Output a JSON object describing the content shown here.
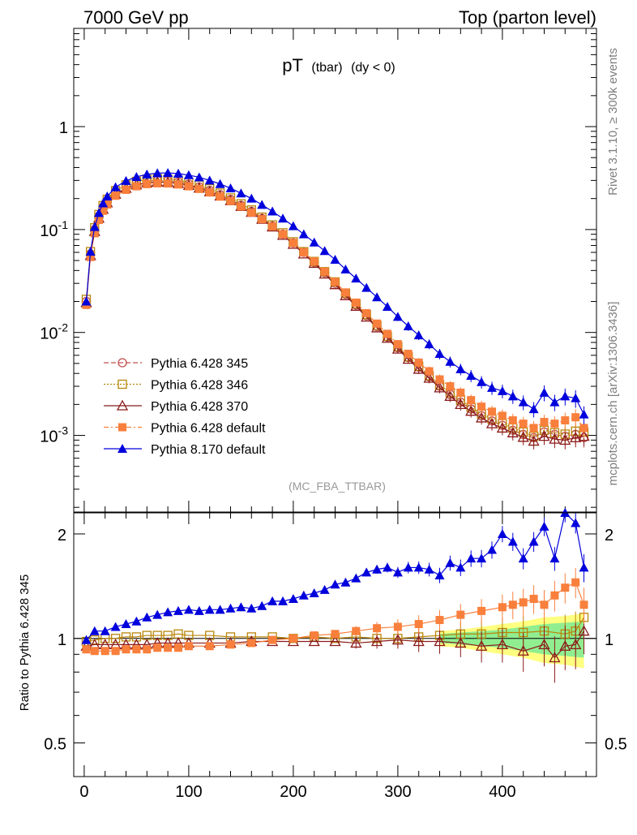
{
  "header": {
    "left": "7000 GeV pp",
    "right": "Top (parton level)"
  },
  "plot_title": {
    "main": "pT",
    "sub": "(tbar)",
    "cond": "(dy < 0)"
  },
  "watermark": "(MC_FBA_TTBAR)",
  "side_text": {
    "rivet": "Rivet 3.1.10, ≥ 300k events",
    "mcplots": "mcplots.cern.ch [arXiv:1306.3436]"
  },
  "colors": {
    "p345": "#c0504d",
    "p346": "#b8860b",
    "p370": "#8b1a1a",
    "p6def": "#f97f3c",
    "p8": "#0000dd",
    "band_outer": "#ffff80",
    "band_inner": "#90ee90"
  },
  "chart_data": [
    {
      "type": "line",
      "panel": "main",
      "yscale": "log",
      "xlim": [
        -10,
        490
      ],
      "ylim": [
        0.00018,
        9
      ],
      "y_tick_labels": [
        "1",
        "10^-1",
        "10^-2",
        "10^-3"
      ],
      "legend_placement": "bottom-left",
      "series": [
        {
          "name": "Pythia 6.428 345",
          "key": "p345",
          "marker": "open-circle",
          "dash": "dashed",
          "x": [
            2,
            6,
            10,
            14,
            18,
            22,
            30,
            40,
            50,
            60,
            70,
            80,
            90,
            100,
            110,
            120,
            130,
            140,
            150,
            160,
            170,
            180,
            190,
            200,
            210,
            220,
            230,
            240,
            250,
            260,
            270,
            280,
            290,
            300,
            310,
            320,
            330,
            340,
            350,
            360,
            370,
            380,
            390,
            400,
            410,
            420,
            430,
            440,
            450,
            460,
            470,
            478
          ],
          "y": [
            0.02,
            0.058,
            0.1,
            0.135,
            0.165,
            0.19,
            0.23,
            0.262,
            0.283,
            0.296,
            0.3,
            0.298,
            0.29,
            0.277,
            0.26,
            0.24,
            0.218,
            0.196,
            0.172,
            0.15,
            0.128,
            0.108,
            0.09,
            0.074,
            0.06,
            0.048,
            0.038,
            0.03,
            0.0235,
            0.0185,
            0.0145,
            0.0114,
            0.009,
            0.0071,
            0.0057,
            0.0046,
            0.0037,
            0.003,
            0.0025,
            0.0021,
            0.0018,
            0.00155,
            0.00138,
            0.00125,
            0.00112,
            0.00102,
            0.00095,
            0.00108,
            0.00102,
            0.00098,
            0.00102,
            0.00095
          ]
        },
        {
          "name": "Pythia 6.428 346",
          "key": "p346",
          "marker": "open-square",
          "dash": "dotted",
          "x": [
            2,
            6,
            10,
            14,
            18,
            22,
            30,
            40,
            50,
            60,
            70,
            80,
            90,
            100,
            110,
            120,
            130,
            140,
            150,
            160,
            170,
            180,
            190,
            200,
            210,
            220,
            230,
            240,
            250,
            260,
            270,
            280,
            290,
            300,
            310,
            320,
            330,
            340,
            350,
            360,
            370,
            380,
            390,
            400,
            410,
            420,
            430,
            440,
            450,
            460,
            470,
            478
          ],
          "y": [
            0.021,
            0.061,
            0.104,
            0.14,
            0.171,
            0.197,
            0.239,
            0.272,
            0.294,
            0.308,
            0.312,
            0.309,
            0.301,
            0.287,
            0.27,
            0.249,
            0.226,
            0.203,
            0.178,
            0.155,
            0.132,
            0.111,
            0.093,
            0.076,
            0.061,
            0.049,
            0.039,
            0.031,
            0.0241,
            0.019,
            0.0149,
            0.0117,
            0.0092,
            0.0073,
            0.0058,
            0.0047,
            0.0038,
            0.0031,
            0.0026,
            0.0022,
            0.00188,
            0.00162,
            0.00144,
            0.0013,
            0.00118,
            0.00108,
            0.00098,
            0.00112,
            0.00106,
            0.00103,
            0.0011,
            0.00108
          ]
        },
        {
          "name": "Pythia 6.428 370",
          "key": "p370",
          "marker": "open-triangle",
          "dash": "solid",
          "x": [
            2,
            6,
            10,
            14,
            18,
            22,
            30,
            40,
            50,
            60,
            70,
            80,
            90,
            100,
            110,
            120,
            130,
            140,
            150,
            160,
            170,
            180,
            190,
            200,
            210,
            220,
            230,
            240,
            250,
            260,
            270,
            280,
            290,
            300,
            310,
            320,
            330,
            340,
            350,
            360,
            370,
            380,
            390,
            400,
            410,
            420,
            430,
            440,
            450,
            460,
            470,
            478
          ],
          "y": [
            0.0195,
            0.056,
            0.096,
            0.129,
            0.158,
            0.182,
            0.221,
            0.252,
            0.272,
            0.285,
            0.29,
            0.288,
            0.281,
            0.269,
            0.253,
            0.233,
            0.212,
            0.191,
            0.168,
            0.147,
            0.126,
            0.106,
            0.088,
            0.072,
            0.058,
            0.047,
            0.037,
            0.0292,
            0.0228,
            0.018,
            0.0141,
            0.0111,
            0.0088,
            0.0069,
            0.0055,
            0.0044,
            0.0036,
            0.0029,
            0.0024,
            0.002,
            0.00172,
            0.00148,
            0.0013,
            0.00118,
            0.00106,
            0.00096,
            0.00088,
            0.00098,
            0.00092,
            0.0009,
            0.00095,
            0.00098
          ]
        },
        {
          "name": "Pythia 6.428 default",
          "key": "p6def",
          "marker": "filled-square",
          "dash": "dashdot",
          "x": [
            2,
            6,
            10,
            14,
            18,
            22,
            30,
            40,
            50,
            60,
            70,
            80,
            90,
            100,
            110,
            120,
            130,
            140,
            150,
            160,
            170,
            180,
            190,
            200,
            210,
            220,
            230,
            240,
            250,
            260,
            270,
            280,
            290,
            300,
            310,
            320,
            330,
            340,
            350,
            360,
            370,
            380,
            390,
            400,
            410,
            420,
            430,
            440,
            450,
            460,
            470,
            478
          ],
          "y": [
            0.0185,
            0.054,
            0.092,
            0.124,
            0.152,
            0.175,
            0.213,
            0.243,
            0.263,
            0.276,
            0.281,
            0.28,
            0.274,
            0.263,
            0.248,
            0.229,
            0.209,
            0.189,
            0.167,
            0.146,
            0.126,
            0.107,
            0.09,
            0.074,
            0.06,
            0.049,
            0.039,
            0.031,
            0.0245,
            0.0195,
            0.0154,
            0.0122,
            0.0097,
            0.0077,
            0.0062,
            0.0051,
            0.0042,
            0.0035,
            0.003,
            0.0026,
            0.0022,
            0.0019,
            0.0017,
            0.00155,
            0.0014,
            0.0013,
            0.00118,
            0.00135,
            0.0013,
            0.0014,
            0.0015,
            0.00118
          ]
        },
        {
          "name": "Pythia 8.170 default",
          "key": "p8",
          "marker": "filled-triangle",
          "dash": "solid",
          "x": [
            2,
            6,
            10,
            14,
            18,
            22,
            30,
            40,
            50,
            60,
            70,
            80,
            90,
            100,
            110,
            120,
            130,
            140,
            150,
            160,
            170,
            180,
            190,
            200,
            210,
            220,
            230,
            240,
            250,
            260,
            270,
            280,
            290,
            300,
            310,
            320,
            330,
            340,
            350,
            360,
            370,
            380,
            390,
            400,
            410,
            420,
            430,
            440,
            450,
            460,
            470,
            478
          ],
          "y": [
            0.02,
            0.061,
            0.106,
            0.145,
            0.18,
            0.21,
            0.258,
            0.297,
            0.325,
            0.344,
            0.353,
            0.355,
            0.35,
            0.338,
            0.322,
            0.3,
            0.277,
            0.252,
            0.225,
            0.2,
            0.174,
            0.15,
            0.128,
            0.108,
            0.09,
            0.075,
            0.062,
            0.051,
            0.041,
            0.0335,
            0.0272,
            0.022,
            0.0178,
            0.0142,
            0.0115,
            0.0094,
            0.0077,
            0.0062,
            0.0052,
            0.0044,
            0.0038,
            0.0033,
            0.0029,
            0.0027,
            0.0024,
            0.0021,
            0.0018,
            0.0026,
            0.0021,
            0.0024,
            0.0023,
            0.0016
          ]
        }
      ]
    },
    {
      "type": "line",
      "panel": "ratio",
      "ylabel": "Ratio to Pythia 6.428 345",
      "xlim": [
        -10,
        490
      ],
      "ylim": [
        0.4,
        2.3
      ],
      "x_ticks": [
        0,
        100,
        200,
        300,
        400
      ],
      "y_ticks": [
        0.5,
        1,
        2
      ],
      "band": {
        "x": [
          340,
          360,
          380,
          400,
          420,
          440,
          460,
          478
        ],
        "inner": [
          0.03,
          0.04,
          0.05,
          0.06,
          0.08,
          0.1,
          0.11,
          0.12
        ],
        "outer": [
          0.05,
          0.06,
          0.08,
          0.1,
          0.12,
          0.15,
          0.16,
          0.18
        ]
      },
      "series": [
        {
          "name": "Pythia 6.428 346",
          "key": "p346",
          "marker": "open-square",
          "x": [
            2,
            10,
            20,
            30,
            40,
            50,
            60,
            70,
            80,
            90,
            100,
            120,
            140,
            160,
            180,
            200,
            220,
            240,
            260,
            280,
            300,
            320,
            340,
            360,
            380,
            400,
            420,
            440,
            460,
            470,
            478
          ],
          "y": [
            0.98,
            0.99,
            1.0,
            1.0,
            1.01,
            1.01,
            1.02,
            1.02,
            1.02,
            1.03,
            1.02,
            1.02,
            1.01,
            1.01,
            1.01,
            1.0,
            1.01,
            1.0,
            1.01,
            1.0,
            1.0,
            1.01,
            1.02,
            1.03,
            1.03,
            1.04,
            1.04,
            1.05,
            1.03,
            1.05,
            1.15
          ]
        },
        {
          "name": "Pythia 6.428 370",
          "key": "p370",
          "marker": "open-triangle",
          "x": [
            2,
            10,
            20,
            30,
            40,
            50,
            60,
            70,
            80,
            90,
            100,
            120,
            140,
            160,
            180,
            200,
            220,
            240,
            260,
            280,
            300,
            320,
            340,
            360,
            380,
            400,
            420,
            440,
            450,
            460,
            470,
            478
          ],
          "y": [
            0.95,
            0.96,
            0.96,
            0.96,
            0.96,
            0.96,
            0.96,
            0.97,
            0.97,
            0.97,
            0.97,
            0.97,
            0.97,
            0.98,
            0.98,
            0.98,
            0.98,
            0.98,
            0.97,
            0.98,
            0.99,
            0.98,
            0.98,
            0.97,
            0.95,
            0.96,
            0.92,
            0.96,
            0.88,
            0.95,
            0.96,
            1.05
          ]
        },
        {
          "name": "Pythia 6.428 default",
          "key": "p6def",
          "marker": "filled-square",
          "x": [
            2,
            10,
            20,
            30,
            40,
            50,
            60,
            70,
            80,
            90,
            100,
            120,
            140,
            160,
            180,
            200,
            220,
            240,
            260,
            280,
            300,
            320,
            340,
            360,
            380,
            400,
            410,
            420,
            430,
            440,
            450,
            460,
            470,
            478
          ],
          "y": [
            0.93,
            0.92,
            0.92,
            0.92,
            0.93,
            0.93,
            0.93,
            0.94,
            0.94,
            0.94,
            0.95,
            0.95,
            0.96,
            0.97,
            0.99,
            1.0,
            1.02,
            1.03,
            1.05,
            1.07,
            1.08,
            1.1,
            1.13,
            1.17,
            1.2,
            1.23,
            1.25,
            1.27,
            1.3,
            1.25,
            1.33,
            1.4,
            1.45,
            1.25
          ]
        },
        {
          "name": "Pythia 8.170 default",
          "key": "p8",
          "marker": "filled-triangle",
          "x": [
            2,
            10,
            20,
            30,
            40,
            50,
            60,
            70,
            80,
            90,
            100,
            110,
            120,
            130,
            140,
            150,
            160,
            170,
            180,
            190,
            200,
            210,
            220,
            230,
            240,
            250,
            260,
            270,
            280,
            290,
            300,
            310,
            320,
            330,
            340,
            350,
            360,
            370,
            380,
            390,
            400,
            410,
            420,
            430,
            440,
            450,
            460,
            470,
            478
          ],
          "y": [
            0.99,
            1.05,
            1.05,
            1.08,
            1.1,
            1.12,
            1.15,
            1.17,
            1.19,
            1.2,
            1.21,
            1.2,
            1.21,
            1.21,
            1.22,
            1.23,
            1.22,
            1.24,
            1.28,
            1.28,
            1.3,
            1.33,
            1.35,
            1.38,
            1.43,
            1.45,
            1.49,
            1.55,
            1.58,
            1.6,
            1.55,
            1.6,
            1.6,
            1.58,
            1.52,
            1.65,
            1.6,
            1.7,
            1.7,
            1.8,
            2.0,
            1.9,
            1.7,
            1.9,
            2.1,
            1.7,
            2.3,
            2.15,
            1.6
          ]
        }
      ]
    }
  ]
}
